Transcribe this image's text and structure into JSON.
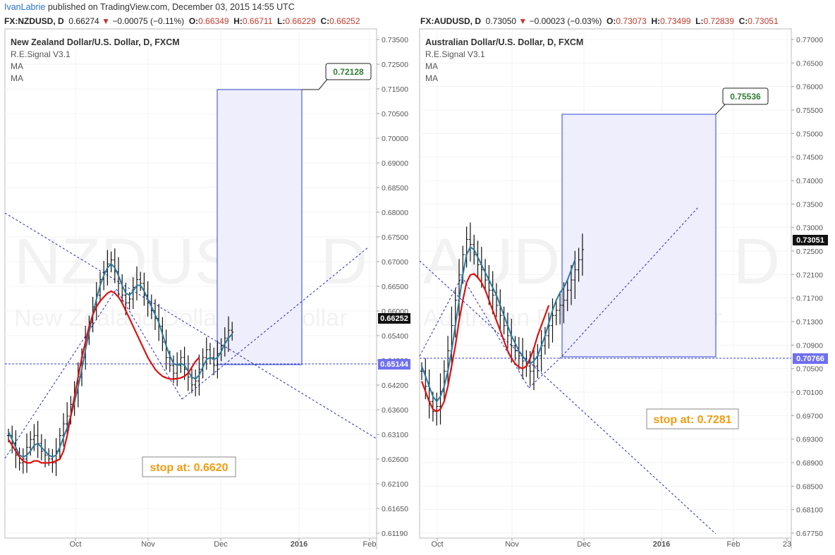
{
  "header": {
    "user": "IvanLabrie",
    "rest": " published on TradingView.com, December 03, 2015 14:55 UTC"
  },
  "panels": [
    {
      "symbol": "FX:NZDUSD, D",
      "last": "0.66274",
      "change": "−0.00075 (−0.11%)",
      "O": "0.66349",
      "H": "0.66711",
      "L": "0.66229",
      "C": "0.66252",
      "title": "New Zealand Dollar/U.S. Dollar, D, FXCM",
      "indicators": [
        "R.E.Signal V3.1",
        "MA",
        "MA"
      ],
      "watermark1": "NZDUSD, D",
      "watermark2": "New Zealand Dollar/U.S. Dollar",
      "current_price_label": "0.66252",
      "entry_price_label": "0.65144",
      "target_label": "0.72128",
      "stop_label": "stop at: 0.6620"
    },
    {
      "symbol": "FX:AUDUSD, D",
      "last": "0.73050",
      "change": "−0.00023 (−0.03%)",
      "O": "0.73073",
      "H": "0.73499",
      "L": "0.72839",
      "C": "0.73051",
      "title": "Australian Dollar/U.S. Dollar, D, FXCM",
      "indicators": [
        "R.E.Signal V3.1",
        "MA",
        "MA"
      ],
      "watermark1": "AUDUSD, D",
      "watermark2": "Australian Dollar/U.S. Dollar",
      "current_price_label": "0.73051",
      "entry_price_label": "0.70766",
      "target_label": "0.75536",
      "stop_label": "stop at: 0.7281"
    }
  ],
  "colors": {
    "bars": "#111111",
    "ma_fast": "#2b7b9e",
    "ma_slow": "#e01010",
    "trendline": "#2222cc",
    "target_box_fill": "#eeeefc",
    "target_box_stroke": "#3344cc",
    "target_text": "#2e7d32",
    "stop_text": "#f39c12",
    "grid": "#eeeeee"
  },
  "chart_data": [
    {
      "type": "ohlc",
      "title": "New Zealand Dollar/U.S. Dollar, D, FXCM",
      "y_ticks": [
        "0.73500",
        "0.72500",
        "0.71500",
        "0.70500",
        "0.70000",
        "0.69000",
        "0.68500",
        "0.68000",
        "0.67500",
        "0.67000",
        "0.66500",
        "0.66000",
        "0.65400",
        "0.64800",
        "0.64200",
        "0.63600",
        "0.63100",
        "0.62600",
        "0.62100",
        "0.61650",
        "0.61190"
      ],
      "x_ticks": [
        "Oct",
        "Nov",
        "Dec",
        "2016",
        "Feb"
      ],
      "grid": true,
      "closes": [
        0.636,
        0.634,
        0.631,
        0.629,
        0.63,
        0.633,
        0.635,
        0.636,
        0.634,
        0.632,
        0.631,
        0.63,
        0.629,
        0.632,
        0.636,
        0.639,
        0.641,
        0.644,
        0.647,
        0.651,
        0.656,
        0.661,
        0.665,
        0.669,
        0.672,
        0.676,
        0.678,
        0.68,
        0.681,
        0.678,
        0.675,
        0.672,
        0.67,
        0.671,
        0.674,
        0.676,
        0.675,
        0.672,
        0.67,
        0.668,
        0.666,
        0.664,
        0.66,
        0.656,
        0.654,
        0.652,
        0.654,
        0.656,
        0.653,
        0.651,
        0.649,
        0.65,
        0.653,
        0.656,
        0.658,
        0.656,
        0.654,
        0.657,
        0.659,
        0.661,
        0.663,
        0.6625
      ],
      "ma_fast": [
        0.637,
        0.635,
        0.633,
        0.631,
        0.6305,
        0.631,
        0.632,
        0.6335,
        0.634,
        0.633,
        0.632,
        0.631,
        0.6305,
        0.631,
        0.633,
        0.6355,
        0.638,
        0.641,
        0.6445,
        0.6485,
        0.653,
        0.658,
        0.6625,
        0.667,
        0.671,
        0.6745,
        0.677,
        0.679,
        0.68,
        0.679,
        0.677,
        0.6745,
        0.6725,
        0.672,
        0.673,
        0.6745,
        0.6745,
        0.673,
        0.671,
        0.669,
        0.667,
        0.665,
        0.662,
        0.659,
        0.6565,
        0.6545,
        0.654,
        0.6545,
        0.654,
        0.6525,
        0.651,
        0.6505,
        0.6515,
        0.6535,
        0.6555,
        0.656,
        0.6555,
        0.656,
        0.6575,
        0.6595,
        0.661,
        0.662
      ],
      "ma_slow": [
        0.635,
        0.6335,
        0.632,
        0.6305,
        0.6295,
        0.629,
        0.629,
        0.6295,
        0.6295,
        0.629,
        0.629,
        0.629,
        0.6292,
        0.6295,
        0.63,
        0.632,
        0.636,
        0.641,
        0.646,
        0.651,
        0.656,
        0.66,
        0.664,
        0.667,
        0.669,
        0.6705,
        0.6715,
        0.6725,
        0.673,
        0.6725,
        0.6715,
        0.67,
        0.668,
        0.666,
        0.664,
        0.662,
        0.66,
        0.658,
        0.656,
        0.6545,
        0.653,
        0.652,
        0.6512,
        0.6508,
        0.6505,
        0.6505,
        0.6506,
        0.6508,
        0.6512,
        0.652,
        0.6535,
        0.655,
        0.656
      ],
      "ylim": [
        0.611,
        0.7375
      ]
    },
    {
      "type": "ohlc",
      "title": "Australian Dollar/U.S. Dollar, D, FXCM",
      "y_ticks": [
        "0.77000",
        "0.76500",
        "0.76000",
        "0.75500",
        "0.75000",
        "0.74500",
        "0.74000",
        "0.73500",
        "0.73000",
        "0.72500",
        "0.72100",
        "0.71700",
        "0.71300",
        "0.70900",
        "0.70500",
        "0.70100",
        "0.69700",
        "0.69300",
        "0.68900",
        "0.68500",
        "0.68100",
        "0.67750"
      ],
      "x_ticks": [
        "Oct",
        "Nov",
        "Dec",
        "2016",
        "Feb",
        "23"
      ],
      "grid": true,
      "closes": [
        0.707,
        0.704,
        0.701,
        0.699,
        0.7,
        0.703,
        0.707,
        0.711,
        0.716,
        0.721,
        0.726,
        0.73,
        0.733,
        0.732,
        0.73,
        0.728,
        0.727,
        0.725,
        0.723,
        0.722,
        0.72,
        0.718,
        0.716,
        0.714,
        0.712,
        0.711,
        0.71,
        0.709,
        0.708,
        0.707,
        0.708,
        0.71,
        0.712,
        0.714,
        0.716,
        0.718,
        0.719,
        0.72,
        0.721,
        0.723,
        0.725,
        0.727,
        0.729,
        0.731
      ],
      "ma_fast": [
        0.708,
        0.706,
        0.704,
        0.702,
        0.701,
        0.702,
        0.704,
        0.707,
        0.711,
        0.716,
        0.721,
        0.726,
        0.73,
        0.7315,
        0.731,
        0.7295,
        0.728,
        0.7265,
        0.725,
        0.7235,
        0.722,
        0.72,
        0.718,
        0.716,
        0.714,
        0.7125,
        0.711,
        0.71,
        0.709,
        0.7085,
        0.709,
        0.71,
        0.712,
        0.714,
        0.7165,
        0.719,
        0.721,
        0.7225,
        0.7235,
        0.725,
        0.727,
        0.729
      ],
      "ma_slow": [
        0.705,
        0.703,
        0.701,
        0.6995,
        0.699,
        0.6995,
        0.701,
        0.704,
        0.708,
        0.712,
        0.717,
        0.721,
        0.7245,
        0.726,
        0.7262,
        0.7255,
        0.7245,
        0.723,
        0.721,
        0.719,
        0.717,
        0.715,
        0.713,
        0.711,
        0.7095,
        0.7085,
        0.7078,
        0.7075,
        0.708,
        0.7095,
        0.7115,
        0.714,
        0.716,
        0.718,
        0.72
      ],
      "ylim": [
        0.675,
        0.7725
      ]
    }
  ]
}
